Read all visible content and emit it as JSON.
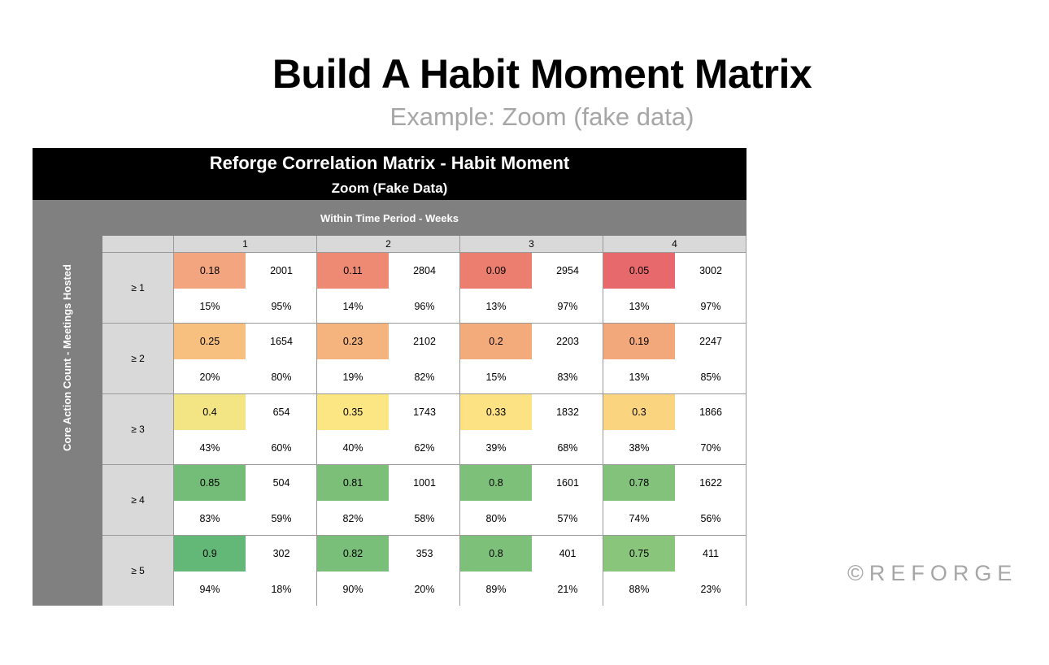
{
  "slide": {
    "title": "Build A Habit Moment Matrix",
    "subtitle": "Example: Zoom (fake data)",
    "brand": "©REFORGE"
  },
  "chart_data": {
    "type": "table",
    "title": "Reforge Correlation Matrix - Habit Moment",
    "subtitle": "Zoom (Fake Data)",
    "column_header": "Within Time Period - Weeks",
    "row_header": "Core Action Count - Meetings Hosted",
    "weeks": [
      "1",
      "2",
      "3",
      "4"
    ],
    "rows": [
      {
        "label": "≥ 1",
        "cells": [
          {
            "score": "0.18",
            "count": "2001",
            "pct_a": "15%",
            "pct_b": "95%",
            "color": "#f2a57f"
          },
          {
            "score": "0.11",
            "count": "2804",
            "pct_a": "14%",
            "pct_b": "96%",
            "color": "#ee8a73"
          },
          {
            "score": "0.09",
            "count": "2954",
            "pct_a": "13%",
            "pct_b": "97%",
            "color": "#ec7e6f"
          },
          {
            "score": "0.05",
            "count": "3002",
            "pct_a": "13%",
            "pct_b": "97%",
            "color": "#e8696b"
          }
        ]
      },
      {
        "label": "≥ 2",
        "cells": [
          {
            "score": "0.25",
            "count": "1654",
            "pct_a": "20%",
            "pct_b": "80%",
            "color": "#f7c07f"
          },
          {
            "score": "0.23",
            "count": "2102",
            "pct_a": "19%",
            "pct_b": "82%",
            "color": "#f5b47d"
          },
          {
            "score": "0.2",
            "count": "2203",
            "pct_a": "15%",
            "pct_b": "83%",
            "color": "#f3ab7c"
          },
          {
            "score": "0.19",
            "count": "2247",
            "pct_a": "13%",
            "pct_b": "85%",
            "color": "#f2a87b"
          }
        ]
      },
      {
        "label": "≥ 3",
        "cells": [
          {
            "score": "0.4",
            "count": "654",
            "pct_a": "43%",
            "pct_b": "60%",
            "color": "#f3e583"
          },
          {
            "score": "0.35",
            "count": "1743",
            "pct_a": "40%",
            "pct_b": "62%",
            "color": "#fbe683"
          },
          {
            "score": "0.33",
            "count": "1832",
            "pct_a": "39%",
            "pct_b": "68%",
            "color": "#fde283"
          },
          {
            "score": "0.3",
            "count": "1866",
            "pct_a": "38%",
            "pct_b": "70%",
            "color": "#fad47f"
          }
        ]
      },
      {
        "label": "≥ 4",
        "cells": [
          {
            "score": "0.85",
            "count": "504",
            "pct_a": "83%",
            "pct_b": "59%",
            "color": "#74bd78"
          },
          {
            "score": "0.81",
            "count": "1001",
            "pct_a": "82%",
            "pct_b": "58%",
            "color": "#7bbf79"
          },
          {
            "score": "0.8",
            "count": "1601",
            "pct_a": "80%",
            "pct_b": "57%",
            "color": "#7dc07a"
          },
          {
            "score": "0.78",
            "count": "1622",
            "pct_a": "74%",
            "pct_b": "56%",
            "color": "#82c27b"
          }
        ]
      },
      {
        "label": "≥ 5",
        "cells": [
          {
            "score": "0.9",
            "count": "302",
            "pct_a": "94%",
            "pct_b": "18%",
            "color": "#63b877"
          },
          {
            "score": "0.82",
            "count": "353",
            "pct_a": "90%",
            "pct_b": "20%",
            "color": "#79bf79"
          },
          {
            "score": "0.8",
            "count": "401",
            "pct_a": "89%",
            "pct_b": "21%",
            "color": "#7dc07a"
          },
          {
            "score": "0.75",
            "count": "411",
            "pct_a": "88%",
            "pct_b": "23%",
            "color": "#8ac57c"
          }
        ]
      }
    ]
  }
}
